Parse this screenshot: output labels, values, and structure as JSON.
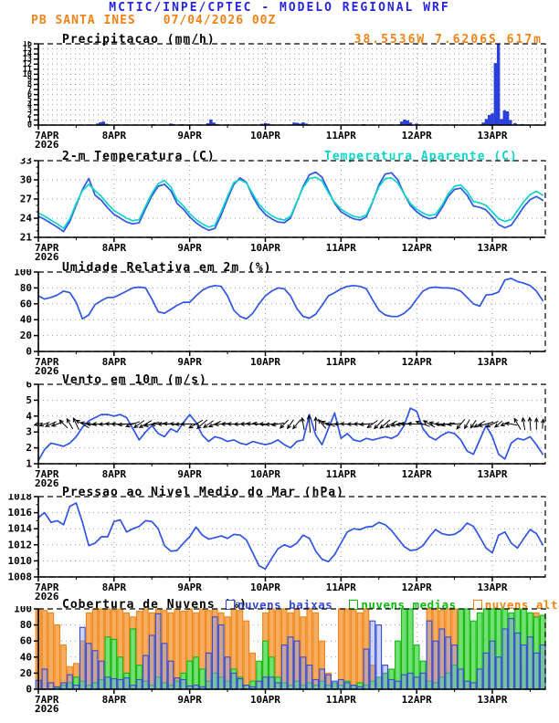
{
  "header": {
    "model_title": "MCTIC/INPE/CPTEC - MODELO REGIONAL WRF",
    "station": "PB SANTA INES",
    "run": "07/04/2026 00Z",
    "location": "38.5536W 7.6206S 617m"
  },
  "colors": {
    "header_blue": "#2626d8",
    "orange": "#f08318",
    "line_blue": "#2f55e6",
    "cyan": "#0fd4c8",
    "precip_blue": "#2b3fd9",
    "grid_dot": "#999999",
    "axis_black": "#000000"
  },
  "x_axis": {
    "day_labels": [
      "7APR",
      "8APR",
      "9APR",
      "10APR",
      "11APR",
      "12APR",
      "13APR"
    ],
    "year_label": "2026",
    "domain_days": 6.7,
    "minor_tick_hours": 12
  },
  "chart_data": [
    {
      "id": "precip",
      "type": "bar",
      "title": "Precipitacao (mm/h)",
      "location_label": "38.5536W 7.6206S 617m",
      "ylim": [
        0,
        16
      ],
      "yticks": [
        0,
        1,
        2,
        3,
        4,
        5,
        6,
        7,
        8,
        9,
        10,
        11,
        12,
        13,
        14,
        15,
        16
      ],
      "bars": [
        [
          0.78,
          0.3
        ],
        [
          0.82,
          0.55
        ],
        [
          0.86,
          0.7
        ],
        [
          0.9,
          0.25
        ],
        [
          1.52,
          0.15
        ],
        [
          1.75,
          0.3
        ],
        [
          1.79,
          0.2
        ],
        [
          1.9,
          0.15
        ],
        [
          2.24,
          0.35
        ],
        [
          2.28,
          1.1
        ],
        [
          2.32,
          0.5
        ],
        [
          2.36,
          0.2
        ],
        [
          2.95,
          0.25
        ],
        [
          3.0,
          0.4
        ],
        [
          3.04,
          0.3
        ],
        [
          3.38,
          0.5
        ],
        [
          3.42,
          0.45
        ],
        [
          3.46,
          0.3
        ],
        [
          3.5,
          0.55
        ],
        [
          3.54,
          0.3
        ],
        [
          4.3,
          0.15
        ],
        [
          4.8,
          0.7
        ],
        [
          4.84,
          1.1
        ],
        [
          4.88,
          0.9
        ],
        [
          4.92,
          0.5
        ],
        [
          5.0,
          0.3
        ],
        [
          5.2,
          0.2
        ],
        [
          5.88,
          0.5
        ],
        [
          5.92,
          1.2
        ],
        [
          5.96,
          2.0
        ],
        [
          6.0,
          2.3
        ],
        [
          6.04,
          12.2
        ],
        [
          6.08,
          16.0
        ],
        [
          6.12,
          1.2
        ],
        [
          6.16,
          2.9
        ],
        [
          6.2,
          2.7
        ],
        [
          6.24,
          1.0
        ],
        [
          6.3,
          0.4
        ],
        [
          6.4,
          0.2
        ]
      ]
    },
    {
      "id": "temp",
      "type": "line",
      "title": "2-m Temperatura (C)",
      "legend_right": "Temperatura Aparente (C)",
      "ylim": [
        21,
        33
      ],
      "yticks": [
        21,
        24,
        27,
        30,
        33
      ],
      "yminor": 1,
      "step_h": 2,
      "series": [
        {
          "name": "2-m Temperatura",
          "color": "#2f55e6",
          "values": [
            24.3,
            23.8,
            23.2,
            22.6,
            21.9,
            23.5,
            26.0,
            28.5,
            30.2,
            27.6,
            26.8,
            25.6,
            24.6,
            24.0,
            23.4,
            23.1,
            23.3,
            25.5,
            27.5,
            29.0,
            29.3,
            28.3,
            26.3,
            25.4,
            24.2,
            23.3,
            22.6,
            22.1,
            22.4,
            24.5,
            27.0,
            29.3,
            30.3,
            29.6,
            27.4,
            25.7,
            24.6,
            23.9,
            23.4,
            23.3,
            24.0,
            26.5,
            29.0,
            30.8,
            31.2,
            30.4,
            28.3,
            26.3,
            25.0,
            24.4,
            23.9,
            23.7,
            24.2,
            26.5,
            29.2,
            30.9,
            31.1,
            30.0,
            27.8,
            26.0,
            25.0,
            24.3,
            23.9,
            24.1,
            25.6,
            27.4,
            28.5,
            28.7,
            27.6,
            25.9,
            25.7,
            25.3,
            24.2,
            23.0,
            22.5,
            22.9,
            24.3,
            25.8,
            26.9,
            27.4,
            26.8
          ]
        },
        {
          "name": "Temperatura Aparente",
          "color": "#0fd4c8",
          "values": [
            24.8,
            24.3,
            23.7,
            23.1,
            22.4,
            23.9,
            26.3,
            28.3,
            29.3,
            28.3,
            27.4,
            26.2,
            25.2,
            24.6,
            24.0,
            23.6,
            23.8,
            25.9,
            27.9,
            29.4,
            29.9,
            28.9,
            26.9,
            25.9,
            24.7,
            23.8,
            23.1,
            22.6,
            22.9,
            25.0,
            27.4,
            29.6,
            30.0,
            29.5,
            27.8,
            26.2,
            25.1,
            24.4,
            23.9,
            23.7,
            24.3,
            26.6,
            28.8,
            30.2,
            30.4,
            29.8,
            28.0,
            26.5,
            25.4,
            24.8,
            24.3,
            24.1,
            24.5,
            26.6,
            28.9,
            30.2,
            30.3,
            29.5,
            27.8,
            26.3,
            25.4,
            24.8,
            24.4,
            24.6,
            26.0,
            27.8,
            29.0,
            29.2,
            28.2,
            26.6,
            26.4,
            26.0,
            25.0,
            23.9,
            23.5,
            23.8,
            25.2,
            26.6,
            27.7,
            28.2,
            27.6
          ]
        }
      ]
    },
    {
      "id": "rh",
      "type": "line",
      "title": "Umidade Relativa em 2m (%)",
      "ylim": [
        0,
        100
      ],
      "yticks": [
        0,
        20,
        40,
        60,
        80,
        100
      ],
      "step_h": 2,
      "series": [
        {
          "name": "Umidade Relativa",
          "color": "#2f55e6",
          "values": [
            70,
            66,
            68,
            71,
            76,
            74,
            62,
            41,
            46,
            59,
            64,
            68,
            68,
            72,
            76,
            80,
            81,
            80,
            66,
            50,
            48,
            53,
            58,
            62,
            62,
            70,
            77,
            81,
            83,
            82,
            70,
            52,
            44,
            41,
            48,
            60,
            70,
            76,
            80,
            79,
            70,
            54,
            44,
            42,
            47,
            58,
            70,
            74,
            79,
            82,
            83,
            82,
            79,
            65,
            52,
            46,
            44,
            44,
            48,
            55,
            66,
            76,
            80,
            81,
            80,
            80,
            79,
            76,
            68,
            60,
            57,
            71,
            72,
            75,
            90,
            92,
            88,
            86,
            83,
            76,
            64
          ]
        }
      ]
    },
    {
      "id": "wind",
      "type": "wind",
      "title": "Vento em 10m (m/s)",
      "ylim": [
        1,
        6
      ],
      "yticks": [
        1,
        2,
        3,
        4,
        5,
        6
      ],
      "step_h": 2,
      "arrow_anchor": 3.5,
      "series": [
        {
          "name": "Velocidade do Vento",
          "color": "#2f55e6",
          "values": [
            1.2,
            1.9,
            2.3,
            2.2,
            2.1,
            2.3,
            2.7,
            3.3,
            3.7,
            3.9,
            4.1,
            4.1,
            4.0,
            4.1,
            3.9,
            3.2,
            2.5,
            3.0,
            3.4,
            2.9,
            2.7,
            3.2,
            3.0,
            3.6,
            4.1,
            3.6,
            2.8,
            2.4,
            2.7,
            2.6,
            2.4,
            2.5,
            2.3,
            2.2,
            2.4,
            2.3,
            2.2,
            2.3,
            2.5,
            2.2,
            2.0,
            2.4,
            2.5,
            4.1,
            2.8,
            2.2,
            3.2,
            4.2,
            2.6,
            2.9,
            2.5,
            2.4,
            2.6,
            2.5,
            2.6,
            2.7,
            2.6,
            2.8,
            3.4,
            4.5,
            4.3,
            3.2,
            2.7,
            2.5,
            2.8,
            3.0,
            2.9,
            2.5,
            1.8,
            1.6,
            2.5,
            3.4,
            2.7,
            1.6,
            1.3,
            2.3,
            2.6,
            2.5,
            2.7,
            2.2,
            1.6
          ]
        }
      ],
      "arrow_angles_deg": [
        195,
        200,
        205,
        200,
        135,
        120,
        115,
        150,
        170,
        180,
        180,
        182,
        178,
        180,
        185,
        200,
        215,
        210,
        195,
        185,
        180,
        175,
        178,
        182,
        180,
        210,
        220,
        215,
        205,
        185,
        180,
        178,
        182,
        180,
        176,
        172,
        180,
        185,
        190,
        225,
        235,
        230,
        100,
        95,
        90,
        130,
        160,
        180,
        180,
        178,
        182,
        180,
        185,
        215,
        225,
        220,
        210,
        195,
        185,
        180,
        178,
        160,
        150,
        165,
        180,
        190,
        185,
        230,
        240,
        235,
        210,
        195,
        205,
        220,
        200,
        170,
        120,
        100,
        95,
        90,
        85
      ]
    },
    {
      "id": "pressure",
      "type": "line",
      "title": "Pressao ao Nivel Medio do Mar (hPa)",
      "ylim": [
        1008,
        1018
      ],
      "yticks": [
        1008,
        1010,
        1012,
        1014,
        1016,
        1018
      ],
      "yminor": 1,
      "step_h": 2,
      "series": [
        {
          "name": "Pressao",
          "color": "#2f55e6",
          "values": [
            1015.4,
            1016.0,
            1014.8,
            1015.0,
            1014.5,
            1016.8,
            1017.2,
            1014.8,
            1011.9,
            1012.2,
            1013.0,
            1013.0,
            1014.9,
            1015.1,
            1013.6,
            1014.0,
            1014.3,
            1015.0,
            1014.9,
            1014.0,
            1011.9,
            1011.2,
            1011.3,
            1012.2,
            1013.0,
            1014.2,
            1013.2,
            1012.7,
            1012.9,
            1013.1,
            1012.8,
            1013.3,
            1013.2,
            1012.6,
            1011.0,
            1009.4,
            1009.0,
            1010.3,
            1011.5,
            1012.0,
            1011.7,
            1012.2,
            1013.2,
            1012.8,
            1011.2,
            1010.2,
            1009.9,
            1010.8,
            1012.2,
            1013.6,
            1014.0,
            1013.9,
            1014.2,
            1014.3,
            1014.8,
            1014.5,
            1013.8,
            1012.8,
            1011.8,
            1011.3,
            1011.4,
            1011.9,
            1013.0,
            1013.9,
            1013.4,
            1013.2,
            1013.3,
            1013.8,
            1014.7,
            1014.3,
            1013.0,
            1011.6,
            1011.0,
            1013.2,
            1013.6,
            1012.2,
            1011.6,
            1012.8,
            1013.9,
            1013.4,
            1012.0
          ]
        }
      ]
    },
    {
      "id": "clouds",
      "type": "cloudbars",
      "title": "Cobertura de Nuvens (%)",
      "ylim": [
        0,
        100
      ],
      "yticks": [
        0,
        20,
        40,
        60,
        80,
        100
      ],
      "step_h": 2,
      "legend": [
        {
          "label": "nuvens baixas",
          "color": "#3548d8"
        },
        {
          "label": "nuvens medias",
          "color": "#0eb90e"
        },
        {
          "label": "nuvens altas",
          "color": "#ef8412"
        }
      ],
      "series": [
        {
          "name": "nuvens altas",
          "fill": "#f6ad62",
          "edge": "#ef8412",
          "values": [
            100,
            98,
            95,
            80,
            55,
            28,
            32,
            60,
            95,
            100,
            100,
            100,
            98,
            100,
            95,
            90,
            97,
            100,
            95,
            100,
            98,
            95,
            100,
            97,
            100,
            95,
            100,
            98,
            100,
            95,
            90,
            100,
            98,
            85,
            45,
            25,
            95,
            100,
            98,
            100,
            95,
            100,
            90,
            100,
            95,
            60,
            20,
            0,
            100,
            100,
            98,
            95,
            100,
            30,
            0,
            0,
            5,
            0,
            20,
            10,
            0,
            0,
            100,
            100,
            98,
            100,
            100,
            95,
            60,
            40,
            20,
            10,
            0,
            0,
            0,
            0,
            0,
            30,
            80,
            95,
            90
          ]
        },
        {
          "name": "nuvens medias",
          "fill": "#72e072",
          "edge": "#0eb90e",
          "values": [
            0,
            0,
            0,
            2,
            5,
            8,
            15,
            10,
            5,
            8,
            12,
            65,
            62,
            40,
            20,
            75,
            30,
            10,
            5,
            15,
            8,
            5,
            10,
            20,
            35,
            40,
            25,
            10,
            20,
            15,
            10,
            25,
            15,
            5,
            10,
            35,
            60,
            40,
            15,
            8,
            5,
            10,
            5,
            8,
            5,
            10,
            5,
            8,
            5,
            10,
            5,
            8,
            5,
            10,
            15,
            20,
            25,
            60,
            100,
            100,
            55,
            35,
            10,
            8,
            15,
            20,
            30,
            100,
            100,
            85,
            95,
            100,
            100,
            100,
            100,
            95,
            100,
            100,
            95,
            90,
            92
          ]
        },
        {
          "name": "nuvens baixas",
          "fill": "rgba(130,150,235,0.40)",
          "edge": "#3548d8",
          "values": [
            11,
            25,
            8,
            3,
            8,
            18,
            5,
            77,
            57,
            48,
            35,
            15,
            13,
            12,
            14,
            5,
            12,
            42,
            67,
            94,
            57,
            35,
            14,
            12,
            4,
            5,
            3,
            45,
            90,
            80,
            40,
            20,
            13,
            5,
            3,
            10,
            15,
            15,
            8,
            55,
            65,
            60,
            40,
            30,
            12,
            25,
            18,
            10,
            12,
            8,
            5,
            3,
            50,
            85,
            80,
            30,
            12,
            10,
            18,
            20,
            15,
            20,
            85,
            60,
            75,
            65,
            55,
            25,
            10,
            8,
            25,
            45,
            60,
            40,
            75,
            88,
            70,
            55,
            65,
            45,
            55
          ]
        }
      ]
    }
  ]
}
